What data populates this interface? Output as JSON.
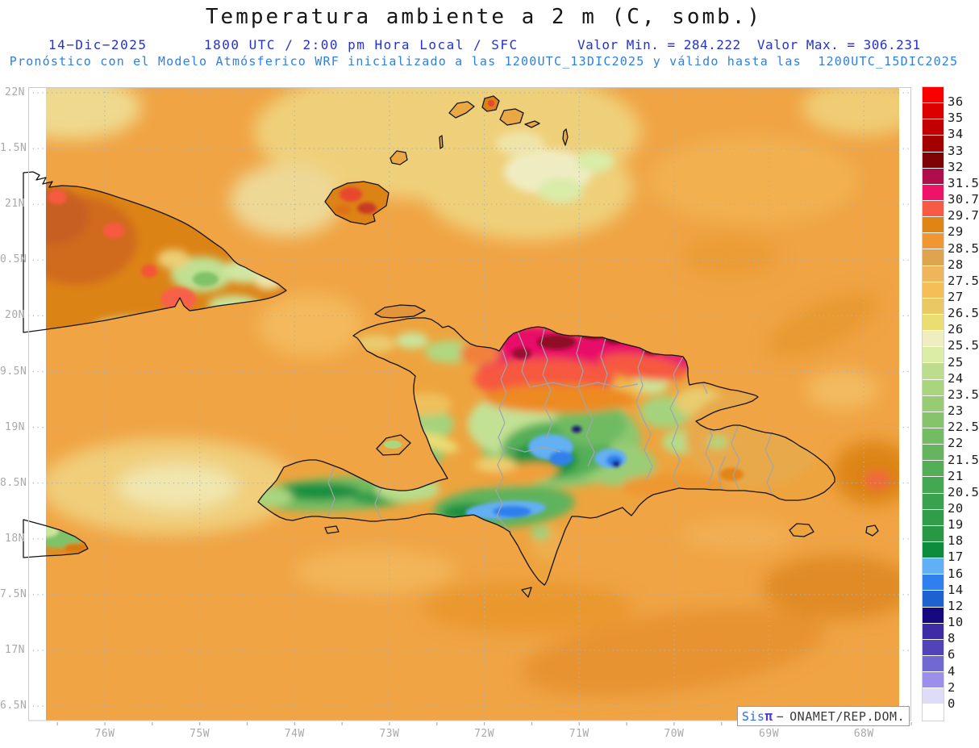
{
  "header": {
    "title": "Temperatura ambiente a 2 m (C, somb.)",
    "date": "14−Dic−2025",
    "time_line": "1800 UTC / 2:00 pm Hora Local / SFC",
    "minmax_line": "Valor Min. = 284.222  Valor Max. = 306.231",
    "model_line": "Pronóstico con el Modelo Atmósferico WRF inicializado a las 1200UTC_13DIC2025 y válido hasta las  1200UTC_15DIC2025"
  },
  "axes": {
    "lat_ticks": [
      "22N",
      "1.5N",
      "21N",
      "0.5N",
      "20N",
      "9.5N",
      "19N",
      "8.5N",
      "18N",
      "7.5N",
      "17N",
      "6.5N"
    ],
    "lon_ticks": [
      "76W",
      "75W",
      "74W",
      "73W",
      "72W",
      "71W",
      "70W",
      "69W",
      "68W"
    ]
  },
  "colorbar": {
    "colors": [
      "#FB0000",
      "#DC0000",
      "#C30001",
      "#A30000",
      "#7F0305",
      "#B00D4D",
      "#EE1268",
      "#F95A45",
      "#E08514",
      "#EF9833",
      "#E0A34E",
      "#EFB55A",
      "#F6BE57",
      "#E9C963",
      "#EBDE71",
      "#EEEEC0",
      "#DCEDA6",
      "#BCDE8C",
      "#A9D57F",
      "#98CC74",
      "#86C46C",
      "#74BC64",
      "#64B55E",
      "#54AE57",
      "#44A752",
      "#38A24E",
      "#2F9D49",
      "#279844",
      "#0E8C3E",
      "#61AFF5",
      "#2F7FEE",
      "#1D62CF",
      "#16087E",
      "#3D2CA6",
      "#5144BB",
      "#7268D2",
      "#9C8FEB",
      "#DEDCF6",
      "#FFFFFF"
    ],
    "labels": [
      "36",
      "35",
      "34",
      "33",
      "32",
      "31.5",
      "30.7",
      "29.7",
      "29",
      "28.5",
      "28",
      "27.5",
      "27",
      "26.5",
      "26",
      "25.5",
      "25",
      "24",
      "23.5",
      "23",
      "22.5",
      "22",
      "21.5",
      "21",
      "20.5",
      "20",
      "19",
      "18",
      "17",
      "16",
      "14",
      "12",
      "10",
      "8",
      "6",
      "4",
      "2",
      "0"
    ]
  },
  "watermark": {
    "sis": "Sis",
    "pi": "π",
    "dash": "−",
    "org": "ONAMET/REP.DOM."
  }
}
